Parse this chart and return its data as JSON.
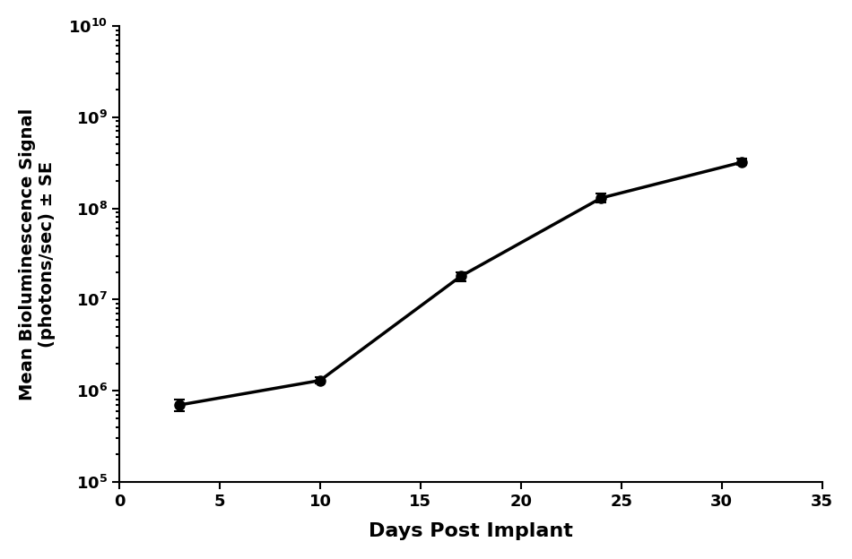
{
  "x": [
    3,
    10,
    17,
    24,
    31
  ],
  "y": [
    700000.0,
    1300000.0,
    18000000.0,
    130000000.0,
    320000000.0
  ],
  "yerr_lower": [
    100000.0,
    100000.0,
    2000000.0,
    15000000.0,
    20000000.0
  ],
  "yerr_upper": [
    100000.0,
    100000.0,
    2000000.0,
    15000000.0,
    30000000.0
  ],
  "xlabel": "Days Post Implant",
  "ylabel": "Mean Bioluminescence Signal\n(photons/sec) ± SE",
  "xlim": [
    0,
    35
  ],
  "ylim": [
    100000.0,
    10000000000.0
  ],
  "xticks": [
    0,
    5,
    10,
    15,
    20,
    25,
    30,
    35
  ],
  "line_color": "#000000",
  "markersize": 8,
  "linewidth": 2.5,
  "background_color": "#ffffff",
  "xlabel_fontsize": 16,
  "ylabel_fontsize": 14,
  "tick_fontsize": 13,
  "capsize": 4,
  "capthick": 1.5,
  "elinewidth": 1.5
}
